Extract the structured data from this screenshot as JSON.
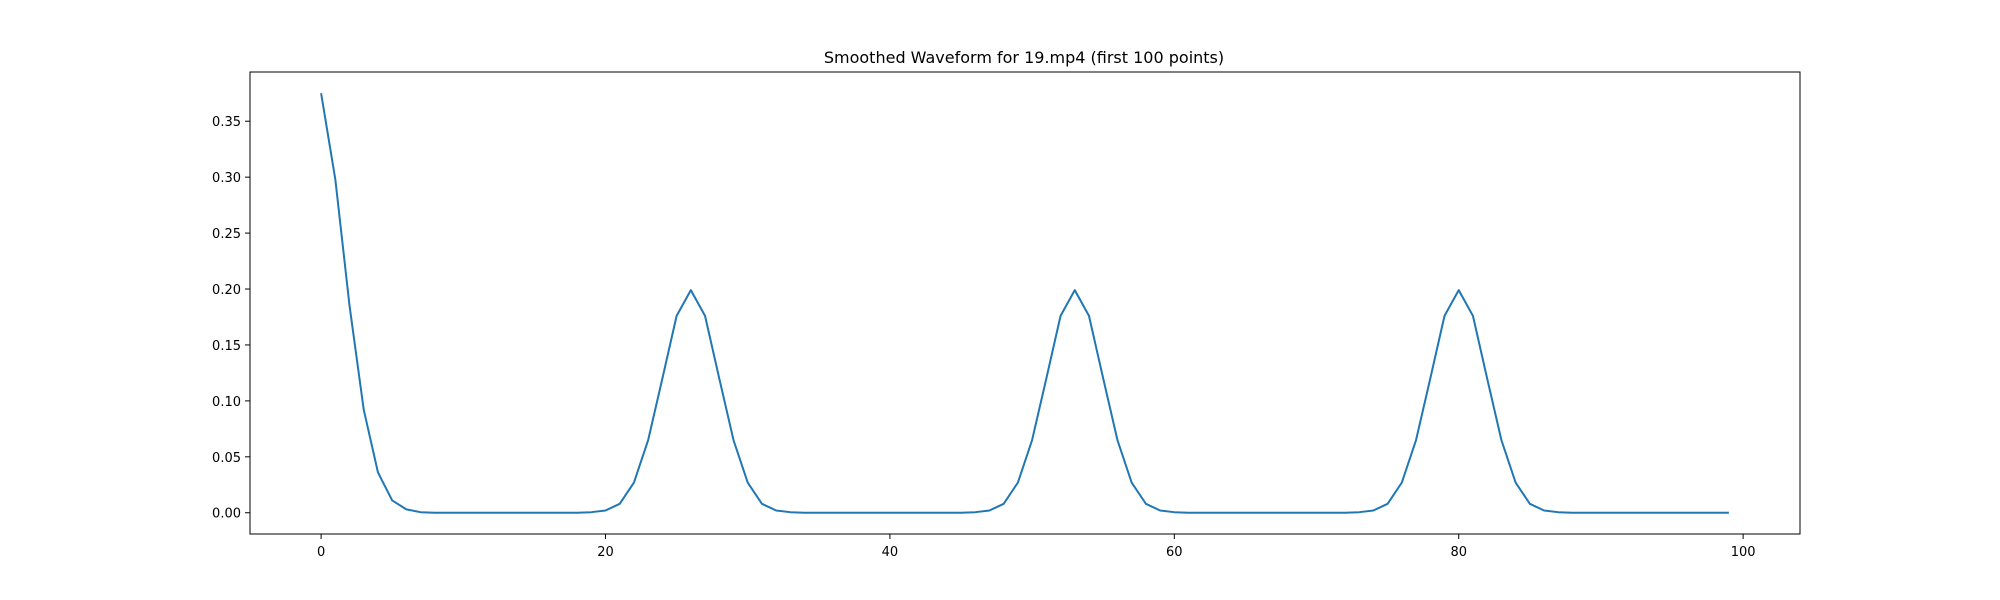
{
  "chart_data": {
    "type": "line",
    "title": "Smoothed Waveform for 19.mp4 (first 100 points)",
    "xlabel": "",
    "ylabel": "",
    "xlim": [
      -5,
      104
    ],
    "ylim": [
      -0.019,
      0.394
    ],
    "grid": false,
    "x_ticks": [
      0,
      20,
      40,
      60,
      80,
      100
    ],
    "x_tick_labels": [
      "0",
      "20",
      "40",
      "60",
      "80",
      "100"
    ],
    "y_ticks": [
      0.0,
      0.05,
      0.1,
      0.15,
      0.2,
      0.25,
      0.3,
      0.35
    ],
    "y_tick_labels": [
      "0.00",
      "0.05",
      "0.10",
      "0.15",
      "0.20",
      "0.25",
      "0.30",
      "0.35"
    ],
    "series": [
      {
        "color": "#1f77b4",
        "x": [
          0,
          1,
          2,
          3,
          4,
          5,
          6,
          7,
          8,
          9,
          10,
          11,
          12,
          13,
          14,
          15,
          16,
          17,
          18,
          19,
          20,
          21,
          22,
          23,
          24,
          25,
          26,
          27,
          28,
          29,
          30,
          31,
          32,
          33,
          34,
          35,
          36,
          37,
          38,
          39,
          40,
          41,
          42,
          43,
          44,
          45,
          46,
          47,
          48,
          49,
          50,
          51,
          52,
          53,
          54,
          55,
          56,
          57,
          58,
          59,
          60,
          61,
          62,
          63,
          64,
          65,
          66,
          67,
          68,
          69,
          70,
          71,
          72,
          73,
          74,
          75,
          76,
          77,
          78,
          79,
          80,
          81,
          82,
          83,
          84,
          85,
          86,
          87,
          88,
          89,
          90,
          91,
          92,
          93,
          94,
          95,
          96,
          97,
          98,
          99
        ],
        "y": [
          0.375,
          0.298,
          0.185,
          0.092,
          0.036,
          0.011,
          0.003,
          0.0005,
          0,
          0,
          0,
          0,
          0,
          0,
          0,
          0,
          0,
          0,
          0,
          0.0005,
          0.002,
          0.008,
          0.027,
          0.065,
          0.12,
          0.176,
          0.199,
          0.176,
          0.12,
          0.065,
          0.027,
          0.008,
          0.002,
          0.0005,
          0,
          0,
          0,
          0,
          0,
          0,
          0,
          0,
          0,
          0,
          0,
          0,
          0.0005,
          0.002,
          0.008,
          0.027,
          0.065,
          0.12,
          0.176,
          0.199,
          0.176,
          0.12,
          0.065,
          0.027,
          0.008,
          0.002,
          0.0005,
          0,
          0,
          0,
          0,
          0,
          0,
          0,
          0,
          0,
          0,
          0,
          0,
          0.0005,
          0.002,
          0.008,
          0.027,
          0.065,
          0.12,
          0.176,
          0.199,
          0.176,
          0.12,
          0.065,
          0.027,
          0.008,
          0.002,
          0.0005,
          0,
          0,
          0,
          0,
          0,
          0,
          0,
          0,
          0,
          0,
          0,
          0
        ]
      }
    ]
  }
}
